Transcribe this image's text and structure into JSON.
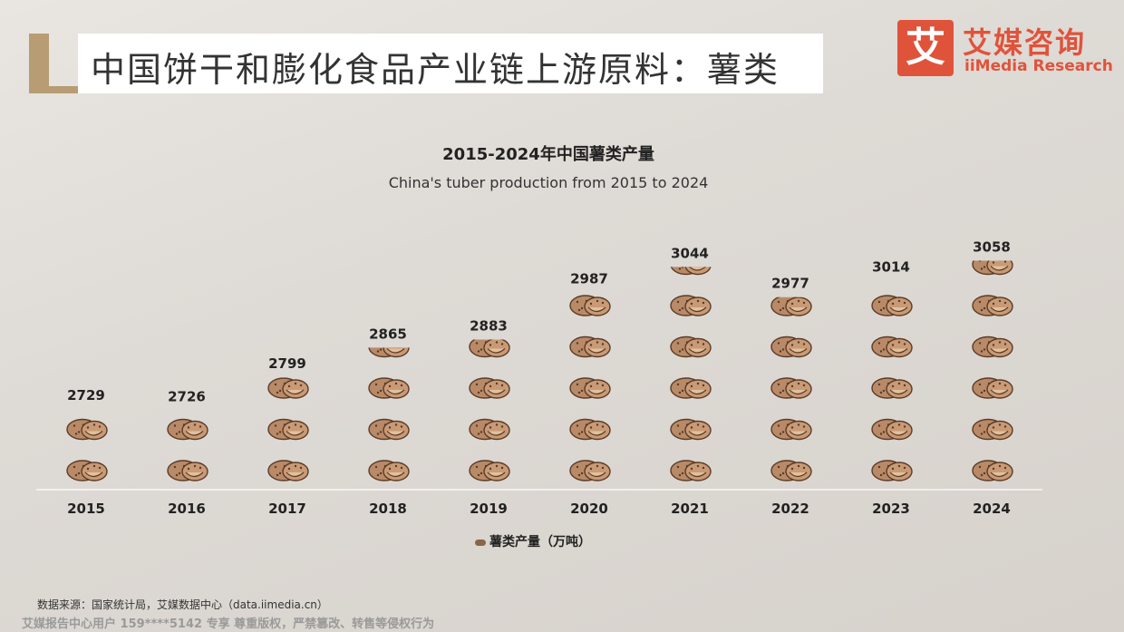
{
  "header": {
    "title": "中国饼干和膨化食品产业链上游原料：薯类",
    "logo_mark": "艾",
    "logo_cn": "艾媒咨询",
    "logo_en": "iiMedia Research"
  },
  "legend": {
    "label": "薯类产量（万吨）"
  },
  "footer": {
    "source": "数据来源：国家统计局，艾媒数据中心（data.iimedia.cn）",
    "watermark": "艾媒报告中心用户 159****5142 专享 尊重版权，严禁篡改、转售等侵权行为"
  },
  "colors": {
    "tuber": "#b98a68",
    "tuber_dark": "#5a3b26",
    "accent": "#b89c74",
    "brand": "#e0533b"
  },
  "chart_data": {
    "type": "bar",
    "title": "2015-2024年中国薯类产量",
    "subtitle": "China's tuber production from 2015 to 2024",
    "categories": [
      "2015",
      "2016",
      "2017",
      "2018",
      "2019",
      "2020",
      "2021",
      "2022",
      "2023",
      "2024"
    ],
    "series": [
      {
        "name": "薯类产量（万吨）",
        "values": [
          2729,
          2726,
          2799,
          2865,
          2883,
          2987,
          3044,
          2977,
          3014,
          3058
        ]
      }
    ],
    "ylim": [
      2550,
      3075
    ],
    "data_labels": [
      "2729",
      "2726",
      "2799",
      "2865",
      "2883",
      "2987",
      "3044",
      "2977",
      "3014",
      "3058"
    ],
    "legend_position": "bottom",
    "grid": false
  }
}
